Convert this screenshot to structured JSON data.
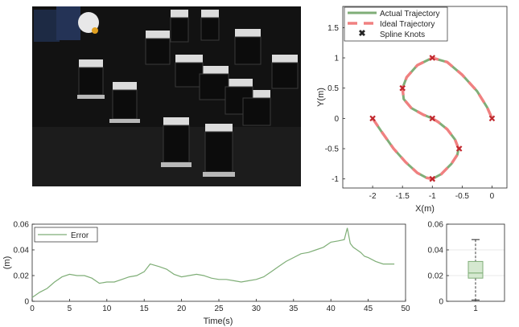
{
  "photo": {
    "icon": "robot-swarm-photo"
  },
  "chart_data": [
    {
      "type": "line",
      "xlabel": "X(m)",
      "ylabel": "Y(m)",
      "xlim": [
        -2.5,
        0.25
      ],
      "ylim": [
        -1.15,
        1.85
      ],
      "xticks": [
        "-2",
        "-1.5",
        "-1",
        "-0.5",
        "0"
      ],
      "yticks": [
        "-1",
        "-0.5",
        "0",
        "0.5",
        "1",
        "1.5"
      ],
      "grid": false,
      "legend_position": "top-right",
      "series": [
        {
          "name": "Actual Trajectory",
          "color": "#7fae77"
        },
        {
          "name": "Ideal Trajectory",
          "color": "#f08080"
        },
        {
          "name": "Spline Knots",
          "color": "#c1272d"
        }
      ],
      "path": {
        "x": [
          -2,
          -1.85,
          -1.65,
          -1.45,
          -1.25,
          -1.1,
          -1.0,
          -0.85,
          -0.68,
          -0.58,
          -0.56,
          -0.62,
          -0.75,
          -0.9,
          -1.0,
          -1.15,
          -1.35,
          -1.48,
          -1.5,
          -1.43,
          -1.25,
          -1.0,
          -0.75,
          -0.5,
          -0.25,
          -0.08,
          0
        ],
        "y": [
          0,
          -0.22,
          -0.5,
          -0.72,
          -0.9,
          -0.98,
          -1.0,
          -0.92,
          -0.75,
          -0.6,
          -0.5,
          -0.35,
          -0.18,
          -0.06,
          0,
          0.06,
          0.17,
          0.32,
          0.5,
          0.68,
          0.88,
          1.0,
          0.93,
          0.72,
          0.45,
          0.18,
          0
        ]
      },
      "knots": {
        "x": [
          -2,
          -1,
          -0.55,
          -1,
          -1.5,
          -1,
          0
        ],
        "y": [
          0,
          -1,
          -0.5,
          0,
          0.5,
          1,
          0
        ]
      }
    },
    {
      "type": "line",
      "xlabel": "Time(s)",
      "ylabel": "(m)",
      "xlim": [
        0,
        50
      ],
      "ylim": [
        0,
        0.06
      ],
      "xticks": [
        "0",
        "5",
        "10",
        "15",
        "20",
        "25",
        "30",
        "35",
        "40",
        "45",
        "50"
      ],
      "yticks": [
        "0",
        "0.02",
        "0.04",
        "0.06"
      ],
      "grid": false,
      "legend_position": "top-left",
      "series": [
        {
          "name": "Error",
          "color": "#7fae77",
          "x": [
            0,
            1,
            2,
            3,
            4,
            5,
            6,
            7,
            8,
            9,
            10,
            11,
            12,
            13,
            14,
            15,
            15.8,
            17,
            18,
            19,
            20,
            21,
            22,
            23,
            24,
            25,
            26,
            27,
            28,
            29,
            30,
            31,
            32,
            33,
            34,
            35,
            36,
            37,
            38,
            39,
            40,
            41,
            41.8,
            42.2,
            42.6,
            43,
            43.5,
            44,
            44.5,
            45,
            46,
            47,
            48.5
          ],
          "y": [
            0.003,
            0.007,
            0.01,
            0.015,
            0.019,
            0.021,
            0.02,
            0.02,
            0.018,
            0.014,
            0.015,
            0.015,
            0.017,
            0.019,
            0.02,
            0.023,
            0.029,
            0.027,
            0.025,
            0.021,
            0.019,
            0.02,
            0.021,
            0.02,
            0.018,
            0.017,
            0.017,
            0.016,
            0.015,
            0.016,
            0.017,
            0.019,
            0.023,
            0.027,
            0.031,
            0.034,
            0.037,
            0.038,
            0.04,
            0.042,
            0.046,
            0.047,
            0.048,
            0.057,
            0.045,
            0.042,
            0.04,
            0.038,
            0.035,
            0.034,
            0.031,
            0.029,
            0.029
          ]
        }
      ]
    },
    {
      "type": "box",
      "xlim": [
        0.5,
        1.5
      ],
      "ylim": [
        0,
        0.06
      ],
      "categories": [
        "1"
      ],
      "yticks": [
        "0",
        "0.02",
        "0.04",
        "0.06"
      ],
      "grid": true,
      "color": "#7fae77",
      "box": {
        "min": 0.001,
        "q1": 0.018,
        "median": 0.022,
        "q3": 0.031,
        "max": 0.048
      }
    }
  ]
}
